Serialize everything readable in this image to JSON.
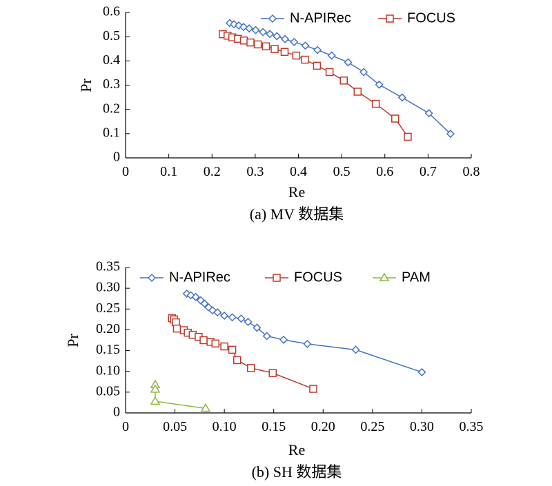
{
  "chart_data": [
    {
      "type": "line",
      "caption": "(a) MV 数据集",
      "xlabel": "Re",
      "ylabel": "Pr",
      "xlim": [
        0,
        0.8
      ],
      "ylim": [
        0,
        0.6
      ],
      "xticks": [
        "0",
        "0.1",
        "0.2",
        "0.3",
        "0.4",
        "0.5",
        "0.6",
        "0.7",
        "0.8"
      ],
      "yticks": [
        "0",
        "0.1",
        "0.2",
        "0.3",
        "0.4",
        "0.5",
        "0.6"
      ],
      "legend_position": "top-right",
      "series": [
        {
          "name": "N-APIRec",
          "marker": "diamond",
          "color": "#4472C4",
          "points": [
            [
              0.241,
              0.556
            ],
            [
              0.251,
              0.551
            ],
            [
              0.262,
              0.546
            ],
            [
              0.273,
              0.54
            ],
            [
              0.286,
              0.534
            ],
            [
              0.301,
              0.527
            ],
            [
              0.318,
              0.519
            ],
            [
              0.334,
              0.511
            ],
            [
              0.35,
              0.502
            ],
            [
              0.369,
              0.49
            ],
            [
              0.39,
              0.478
            ],
            [
              0.416,
              0.463
            ],
            [
              0.444,
              0.445
            ],
            [
              0.477,
              0.422
            ],
            [
              0.515,
              0.394
            ],
            [
              0.551,
              0.354
            ],
            [
              0.587,
              0.302
            ],
            [
              0.64,
              0.249
            ],
            [
              0.702,
              0.184
            ],
            [
              0.752,
              0.099
            ]
          ]
        },
        {
          "name": "FOCUS",
          "marker": "square",
          "color": "#C0392B",
          "points": [
            [
              0.225,
              0.51
            ],
            [
              0.236,
              0.504
            ],
            [
              0.247,
              0.497
            ],
            [
              0.26,
              0.491
            ],
            [
              0.274,
              0.484
            ],
            [
              0.289,
              0.476
            ],
            [
              0.306,
              0.468
            ],
            [
              0.325,
              0.46
            ],
            [
              0.345,
              0.449
            ],
            [
              0.368,
              0.437
            ],
            [
              0.395,
              0.422
            ],
            [
              0.415,
              0.405
            ],
            [
              0.443,
              0.38
            ],
            [
              0.472,
              0.354
            ],
            [
              0.505,
              0.319
            ],
            [
              0.537,
              0.273
            ],
            [
              0.579,
              0.223
            ],
            [
              0.624,
              0.162
            ],
            [
              0.653,
              0.087
            ]
          ]
        }
      ]
    },
    {
      "type": "line",
      "caption": "(b) SH 数据集",
      "xlabel": "Re",
      "ylabel": "Pr",
      "xlim": [
        0,
        0.35
      ],
      "ylim": [
        0,
        0.35
      ],
      "xticks": [
        "0",
        "0.05",
        "0.10",
        "0.15",
        "0.20",
        "0.25",
        "0.30",
        "0.35"
      ],
      "yticks": [
        "0",
        "0.05",
        "0.10",
        "0.15",
        "0.20",
        "0.25",
        "0.30",
        "0.35"
      ],
      "legend_position": "top-right",
      "series": [
        {
          "name": "N-APIRec",
          "marker": "diamond",
          "color": "#4472C4",
          "points": [
            [
              0.062,
              0.287
            ],
            [
              0.066,
              0.283
            ],
            [
              0.071,
              0.279
            ],
            [
              0.076,
              0.271
            ],
            [
              0.08,
              0.263
            ],
            [
              0.084,
              0.254
            ],
            [
              0.088,
              0.247
            ],
            [
              0.093,
              0.242
            ],
            [
              0.1,
              0.234
            ],
            [
              0.108,
              0.23
            ],
            [
              0.117,
              0.227
            ],
            [
              0.124,
              0.219
            ],
            [
              0.133,
              0.205
            ],
            [
              0.143,
              0.185
            ],
            [
              0.16,
              0.176
            ],
            [
              0.184,
              0.166
            ],
            [
              0.233,
              0.152
            ],
            [
              0.3,
              0.098
            ]
          ]
        },
        {
          "name": "FOCUS",
          "marker": "square",
          "color": "#C0392B",
          "points": [
            [
              0.047,
              0.228
            ],
            [
              0.049,
              0.225
            ],
            [
              0.051,
              0.218
            ],
            [
              0.052,
              0.203
            ],
            [
              0.059,
              0.199
            ],
            [
              0.063,
              0.193
            ],
            [
              0.068,
              0.188
            ],
            [
              0.074,
              0.183
            ],
            [
              0.079,
              0.175
            ],
            [
              0.086,
              0.171
            ],
            [
              0.091,
              0.167
            ],
            [
              0.1,
              0.16
            ],
            [
              0.108,
              0.152
            ],
            [
              0.113,
              0.127
            ],
            [
              0.127,
              0.108
            ],
            [
              0.149,
              0.096
            ],
            [
              0.19,
              0.058
            ]
          ]
        },
        {
          "name": "PAM",
          "marker": "triangle",
          "color": "#8DB63C",
          "points": [
            [
              0.03,
              0.068
            ],
            [
              0.03,
              0.057
            ],
            [
              0.03,
              0.028
            ],
            [
              0.081,
              0.011
            ]
          ]
        }
      ]
    }
  ]
}
